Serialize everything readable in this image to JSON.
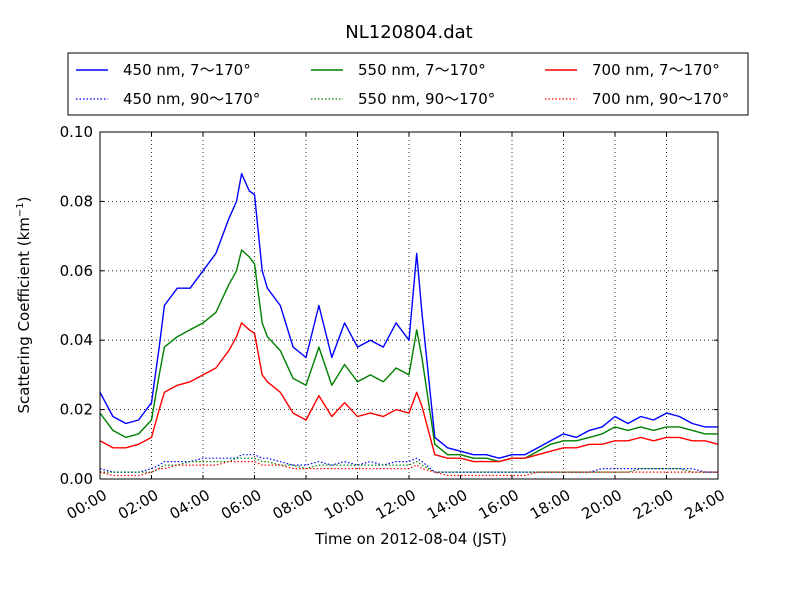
{
  "chart_data": {
    "type": "line",
    "title": "NL120804.dat",
    "xlabel": "Time on 2012-08-04 (JST)",
    "ylabel": "Scattering Coefficient (km",
    "ylabel_sup": "−1",
    "ylabel_close": ")",
    "xlim": [
      "00:00",
      "24:00"
    ],
    "ylim": [
      0.0,
      0.1
    ],
    "x_ticks": [
      "00:00",
      "02:00",
      "04:00",
      "06:00",
      "08:00",
      "10:00",
      "12:00",
      "14:00",
      "16:00",
      "18:00",
      "20:00",
      "22:00",
      "24:00"
    ],
    "y_ticks": [
      "0.00",
      "0.02",
      "0.04",
      "0.06",
      "0.08",
      "0.10"
    ],
    "grid": true,
    "legend_position": "top",
    "x_unit": "hours",
    "x": [
      0,
      0.5,
      1.0,
      1.5,
      2.0,
      2.3,
      2.5,
      3.0,
      3.5,
      4.0,
      4.5,
      5.0,
      5.3,
      5.5,
      5.8,
      6.0,
      6.3,
      6.5,
      7.0,
      7.5,
      8.0,
      8.5,
      9.0,
      9.5,
      10.0,
      10.5,
      11.0,
      11.5,
      12.0,
      12.3,
      12.5,
      13.0,
      13.5,
      14.0,
      14.5,
      15.0,
      15.5,
      16.0,
      16.5,
      17.0,
      17.5,
      18.0,
      18.5,
      19.0,
      19.5,
      20.0,
      20.5,
      21.0,
      21.5,
      22.0,
      22.5,
      23.0,
      23.5,
      24.0
    ],
    "series": [
      {
        "name": "450 nm, 7～170°",
        "color": "#0000ff",
        "style": "solid",
        "values": [
          0.025,
          0.018,
          0.016,
          0.017,
          0.022,
          0.038,
          0.05,
          0.055,
          0.055,
          0.06,
          0.065,
          0.075,
          0.08,
          0.088,
          0.083,
          0.082,
          0.06,
          0.055,
          0.05,
          0.038,
          0.035,
          0.05,
          0.035,
          0.045,
          0.038,
          0.04,
          0.038,
          0.045,
          0.04,
          0.065,
          0.048,
          0.012,
          0.009,
          0.008,
          0.007,
          0.007,
          0.006,
          0.007,
          0.007,
          0.009,
          0.011,
          0.013,
          0.012,
          0.014,
          0.015,
          0.018,
          0.016,
          0.018,
          0.017,
          0.019,
          0.018,
          0.016,
          0.015,
          0.015
        ]
      },
      {
        "name": "550 nm, 7～170°",
        "color": "#008000",
        "style": "solid",
        "values": [
          0.019,
          0.014,
          0.012,
          0.013,
          0.017,
          0.03,
          0.038,
          0.041,
          0.043,
          0.045,
          0.048,
          0.056,
          0.06,
          0.066,
          0.064,
          0.062,
          0.045,
          0.041,
          0.037,
          0.029,
          0.027,
          0.038,
          0.027,
          0.033,
          0.028,
          0.03,
          0.028,
          0.032,
          0.03,
          0.043,
          0.035,
          0.01,
          0.007,
          0.007,
          0.006,
          0.006,
          0.005,
          0.006,
          0.006,
          0.008,
          0.01,
          0.011,
          0.011,
          0.012,
          0.013,
          0.015,
          0.014,
          0.015,
          0.014,
          0.015,
          0.015,
          0.014,
          0.013,
          0.013
        ]
      },
      {
        "name": "700 nm, 7～170°",
        "color": "#ff0000",
        "style": "solid",
        "values": [
          0.011,
          0.009,
          0.009,
          0.01,
          0.012,
          0.02,
          0.025,
          0.027,
          0.028,
          0.03,
          0.032,
          0.037,
          0.041,
          0.045,
          0.043,
          0.042,
          0.03,
          0.028,
          0.025,
          0.019,
          0.017,
          0.024,
          0.018,
          0.022,
          0.018,
          0.019,
          0.018,
          0.02,
          0.019,
          0.025,
          0.021,
          0.007,
          0.006,
          0.006,
          0.005,
          0.005,
          0.005,
          0.006,
          0.006,
          0.007,
          0.008,
          0.009,
          0.009,
          0.01,
          0.01,
          0.011,
          0.011,
          0.012,
          0.011,
          0.012,
          0.012,
          0.011,
          0.011,
          0.01
        ]
      },
      {
        "name": "450 nm, 90～170°",
        "color": "#0000ff",
        "style": "dotted",
        "values": [
          0.003,
          0.002,
          0.002,
          0.002,
          0.003,
          0.004,
          0.005,
          0.005,
          0.005,
          0.006,
          0.006,
          0.006,
          0.006,
          0.007,
          0.007,
          0.007,
          0.006,
          0.006,
          0.005,
          0.004,
          0.004,
          0.005,
          0.004,
          0.005,
          0.004,
          0.005,
          0.004,
          0.005,
          0.005,
          0.006,
          0.005,
          0.002,
          0.002,
          0.002,
          0.002,
          0.002,
          0.002,
          0.002,
          0.002,
          0.002,
          0.002,
          0.002,
          0.002,
          0.002,
          0.003,
          0.003,
          0.003,
          0.003,
          0.003,
          0.003,
          0.003,
          0.003,
          0.002,
          0.002
        ]
      },
      {
        "name": "550 nm, 90～170°",
        "color": "#008000",
        "style": "dotted",
        "values": [
          0.002,
          0.002,
          0.002,
          0.002,
          0.002,
          0.003,
          0.004,
          0.004,
          0.005,
          0.005,
          0.005,
          0.005,
          0.006,
          0.006,
          0.006,
          0.006,
          0.005,
          0.005,
          0.004,
          0.004,
          0.003,
          0.004,
          0.004,
          0.004,
          0.004,
          0.004,
          0.004,
          0.004,
          0.004,
          0.005,
          0.004,
          0.002,
          0.002,
          0.002,
          0.002,
          0.002,
          0.002,
          0.002,
          0.002,
          0.002,
          0.002,
          0.002,
          0.002,
          0.002,
          0.002,
          0.002,
          0.002,
          0.003,
          0.003,
          0.003,
          0.003,
          0.002,
          0.002,
          0.002
        ]
      },
      {
        "name": "700 nm, 90～170°",
        "color": "#ff0000",
        "style": "dotted",
        "values": [
          0.002,
          0.001,
          0.001,
          0.001,
          0.002,
          0.003,
          0.003,
          0.004,
          0.004,
          0.004,
          0.004,
          0.005,
          0.005,
          0.005,
          0.005,
          0.005,
          0.004,
          0.004,
          0.004,
          0.003,
          0.003,
          0.003,
          0.003,
          0.003,
          0.003,
          0.003,
          0.003,
          0.003,
          0.003,
          0.004,
          0.003,
          0.002,
          0.001,
          0.001,
          0.001,
          0.001,
          0.001,
          0.001,
          0.001,
          0.002,
          0.002,
          0.002,
          0.002,
          0.002,
          0.002,
          0.002,
          0.002,
          0.002,
          0.002,
          0.002,
          0.002,
          0.002,
          0.002,
          0.002
        ]
      }
    ]
  }
}
